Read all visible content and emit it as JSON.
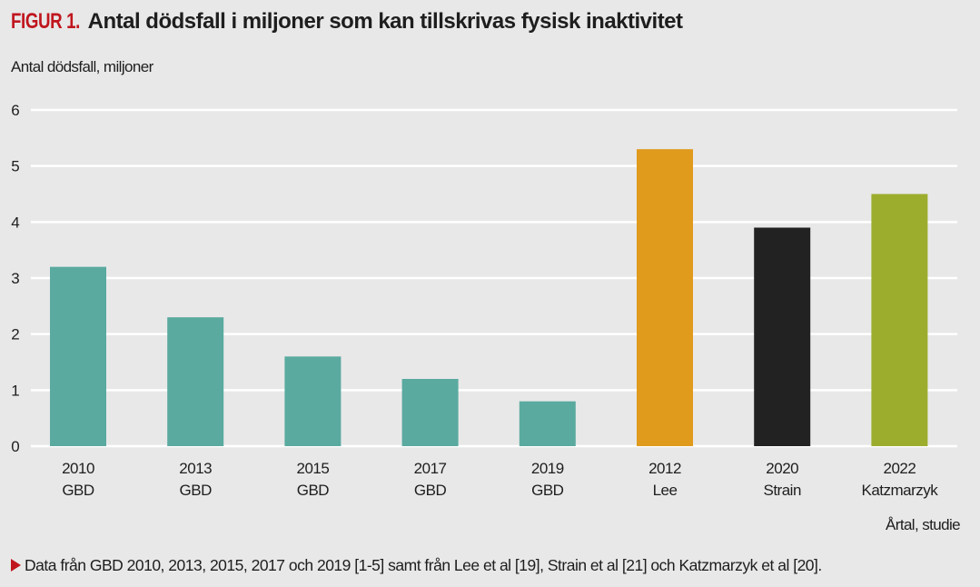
{
  "header": {
    "figure_label": "FIGUR 1.",
    "title": "Antal dödsfall i miljoner som kan tillskrivas fysisk inaktivitet"
  },
  "footnote": {
    "icon": "triangle-right-icon",
    "text": "Data från GBD 2010, 2013, 2015, 2017 och 2019 [1-5] samt från Lee et al [19], Strain et al [21] och Katzmarzyk et al [20]."
  },
  "chart_data": {
    "type": "bar",
    "title": "Antal dödsfall i miljoner som kan tillskrivas fysisk inaktivitet",
    "ylabel": "Antal dödsfall, miljoner",
    "xlabel": "Årtal, studie",
    "ylim": [
      0,
      6
    ],
    "yticks": [
      "0",
      "1",
      "2",
      "3",
      "4",
      "5",
      "6"
    ],
    "grid": true,
    "categories": [
      {
        "year": "2010",
        "study": "GBD"
      },
      {
        "year": "2013",
        "study": "GBD"
      },
      {
        "year": "2015",
        "study": "GBD"
      },
      {
        "year": "2017",
        "study": "GBD"
      },
      {
        "year": "2019",
        "study": "GBD"
      },
      {
        "year": "2012",
        "study": "Lee"
      },
      {
        "year": "2020",
        "study": "Strain"
      },
      {
        "year": "2022",
        "study": "Katzmarzyk"
      }
    ],
    "values": [
      3.2,
      2.3,
      1.6,
      1.2,
      0.8,
      5.3,
      3.9,
      4.5
    ],
    "colors": [
      "#5aaaa0",
      "#5aaaa0",
      "#5aaaa0",
      "#5aaaa0",
      "#5aaaa0",
      "#e09a1c",
      "#222222",
      "#9cad2e"
    ]
  },
  "colors": {
    "background": "#e8e8e8",
    "gridline": "#ffffff",
    "accent": "#c0161e"
  }
}
